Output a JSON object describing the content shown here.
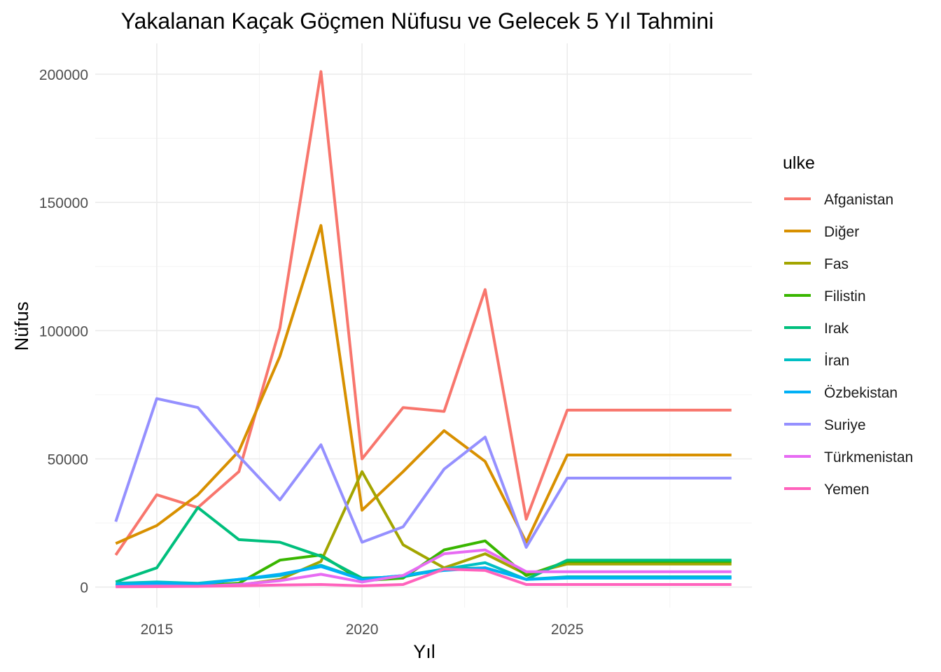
{
  "chart_data": {
    "type": "line",
    "title": "Yakalanan Kaçak Göçmen Nüfusu ve Gelecek 5 Yıl Tahmini",
    "xlabel": "Yıl",
    "ylabel": "Nüfus",
    "xlim": [
      2013.5,
      2029.5
    ],
    "ylim": [
      -8000,
      212000
    ],
    "x_ticks": [
      2015,
      2020,
      2025
    ],
    "y_ticks": [
      0,
      50000,
      100000,
      150000,
      200000
    ],
    "grid": true,
    "legend": {
      "title": "ulke",
      "position": "right"
    },
    "x": [
      2014,
      2015,
      2016,
      2017,
      2018,
      2019,
      2020,
      2021,
      2022,
      2023,
      2024,
      2025,
      2026,
      2027,
      2028,
      2029
    ],
    "series": [
      {
        "name": "Afganistan",
        "color": "#F8766D",
        "values": [
          12500,
          36000,
          31000,
          45000,
          101000,
          201000,
          50000,
          70000,
          68500,
          116000,
          26500,
          69000,
          69000,
          69000,
          69000,
          69000
        ]
      },
      {
        "name": "Diğer",
        "color": "#D89000",
        "values": [
          17000,
          24000,
          36000,
          53000,
          90000,
          141000,
          30000,
          45000,
          61000,
          49000,
          17500,
          51500,
          51500,
          51500,
          51500,
          51500
        ]
      },
      {
        "name": "Fas",
        "color": "#A3A500",
        "values": [
          800,
          700,
          500,
          800,
          3000,
          10000,
          45000,
          16500,
          7500,
          13000,
          5000,
          9000,
          9000,
          9000,
          9000,
          9000
        ]
      },
      {
        "name": "Filistin",
        "color": "#39B600",
        "values": [
          800,
          700,
          600,
          1500,
          10500,
          12500,
          2500,
          3500,
          14500,
          18000,
          4500,
          10000,
          10000,
          10000,
          10000,
          10000
        ]
      },
      {
        "name": "Irak",
        "color": "#00BF7D",
        "values": [
          2000,
          7500,
          31000,
          18500,
          17500,
          12000,
          3500,
          4000,
          7000,
          7500,
          3000,
          10500,
          10500,
          10500,
          10500,
          10500
        ]
      },
      {
        "name": "İran",
        "color": "#00BFC4",
        "values": [
          1500,
          2000,
          1500,
          3000,
          4500,
          8500,
          3000,
          4500,
          7000,
          9500,
          3000,
          4000,
          4000,
          4000,
          4000,
          4000
        ]
      },
      {
        "name": "Özbekistan",
        "color": "#00B0F6",
        "values": [
          800,
          1500,
          1000,
          3000,
          5000,
          8000,
          3000,
          4500,
          6500,
          7500,
          3000,
          3500,
          3500,
          3500,
          3500,
          3500
        ]
      },
      {
        "name": "Suriye",
        "color": "#9590FF",
        "values": [
          25500,
          73500,
          70000,
          51000,
          34000,
          55500,
          17500,
          23500,
          46000,
          58500,
          15500,
          42500,
          42500,
          42500,
          42500,
          42500
        ]
      },
      {
        "name": "Türkmenistan",
        "color": "#E76BF3",
        "values": [
          200,
          400,
          300,
          1000,
          2500,
          5000,
          2000,
          4500,
          13000,
          14500,
          6000,
          6000,
          6000,
          6000,
          6000,
          6000
        ]
      },
      {
        "name": "Yemen",
        "color": "#FF62BC",
        "values": [
          100,
          200,
          300,
          500,
          800,
          1000,
          500,
          1000,
          7000,
          6500,
          1000,
          1000,
          1000,
          1000,
          1000,
          1000
        ]
      }
    ]
  }
}
